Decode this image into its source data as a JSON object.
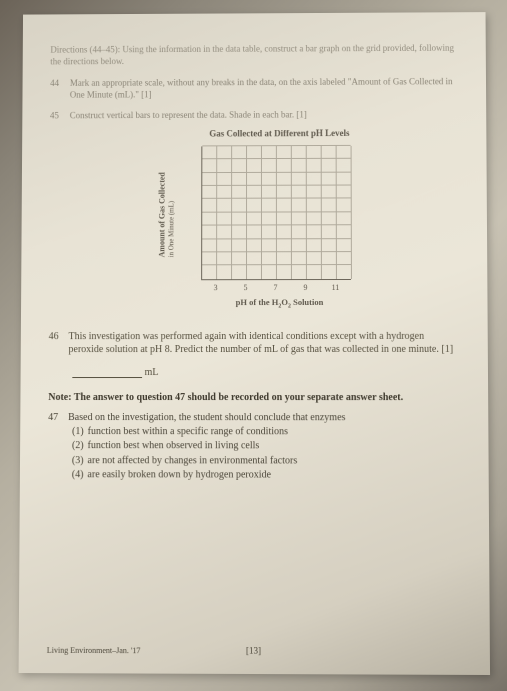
{
  "directions": "Directions (44–45): Using the information in the data table, construct a bar graph on the grid provided, following the directions below.",
  "q44": {
    "num": "44",
    "text": "Mark an appropriate scale, without any breaks in the data, on the axis labeled \"Amount of Gas Collected in One Minute (mL).\"   [1]"
  },
  "q45": {
    "num": "45",
    "text": "Construct vertical bars to represent the data. Shade in each bar.   [1]"
  },
  "chart": {
    "title": "Gas Collected at Different pH Levels",
    "ylabel_line1": "Amount of Gas Collected",
    "ylabel_line2": "in One Minute (mL)",
    "xlabel": "pH of the H₂O₂ Solution",
    "xticks": [
      "3",
      "5",
      "7",
      "9",
      "11"
    ],
    "grid_color": "#b0aa9c",
    "axis_color": "#6b6559",
    "cols": 10,
    "rows": 10
  },
  "q46": {
    "num": "46",
    "text": "This investigation was performed again with identical conditions except with a hydrogen peroxide solution at pH 8. Predict the number of mL of gas that was collected in one minute.   [1]"
  },
  "blank_unit": "mL",
  "note": "Note: The answer to question 47 should be recorded on your separate answer sheet.",
  "q47": {
    "num": "47",
    "stem": "Based on the investigation, the student should conclude that enzymes",
    "choices": [
      "function best within a specific range of conditions",
      "function best when observed in living cells",
      "are not affected by changes in environmental factors",
      "are easily broken down by hydrogen peroxide"
    ]
  },
  "footer_left": "Living Environment–Jan. '17",
  "footer_center": "[13]"
}
